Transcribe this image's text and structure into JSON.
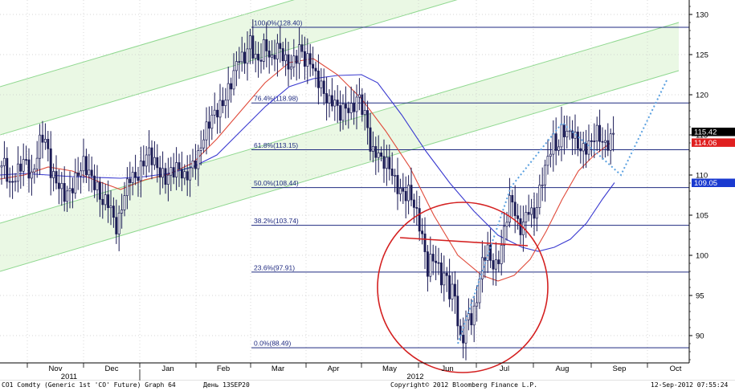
{
  "footer": {
    "ticker": "CO1 Comdty (Generic 1st 'CO' Future) Graph 64",
    "period": "День 13SEP20",
    "copyright": "Copyright© 2012 Bloomberg Finance L.P.",
    "timestamp": "12-Sep-2012 07:55:24"
  },
  "colors": {
    "candle": "#1a1a55",
    "fib_line": "#1f2a80",
    "ma_fast": "#e04a3a",
    "ma_slow": "#3a3ad0",
    "channel": "#90d890",
    "channel_fill": "#eaf8e4",
    "circle": "#d42020",
    "projection": "#5aa0e0",
    "grid": "#c8c8c8"
  },
  "chart_data": {
    "type": "candlestick",
    "ylim": [
      86,
      133
    ],
    "y_ticks": [
      90,
      95,
      100,
      105,
      110,
      115,
      120,
      125,
      130
    ],
    "x_axis": {
      "months": [
        "Nov",
        "Dec",
        "Jan",
        "Feb",
        "Mar",
        "Apr",
        "May",
        "Jun",
        "Jul",
        "Aug",
        "Sep",
        "Oct"
      ],
      "years": [
        {
          "label": "2011",
          "at": "Nov"
        },
        {
          "label": "2012",
          "at": "Jun"
        }
      ]
    },
    "fibonacci": [
      {
        "label": "100.0%(128.40)",
        "value": 128.4
      },
      {
        "label": "76.4%(118.98)",
        "value": 118.98
      },
      {
        "label": "61.8%(113.15)",
        "value": 113.15
      },
      {
        "label": "50.0%(108.44)",
        "value": 108.44
      },
      {
        "label": "38.2%(103.74)",
        "value": 103.74
      },
      {
        "label": "23.6%(97.91)",
        "value": 97.91
      },
      {
        "label": "0.0%(88.49)",
        "value": 88.49
      }
    ],
    "price_tags": [
      {
        "label": "115.42",
        "value": 115.4,
        "color": "#000000"
      },
      {
        "label": "114.06",
        "value": 114.06,
        "color": "#e02020"
      },
      {
        "label": "109.05",
        "value": 109.05,
        "color": "#1a3ad0"
      }
    ],
    "price_path": [
      [
        0,
        111
      ],
      [
        6,
        111.5
      ],
      [
        12,
        108.5
      ],
      [
        20,
        110
      ],
      [
        30,
        112
      ],
      [
        40,
        109.5
      ],
      [
        48,
        113.5
      ],
      [
        52,
        115
      ],
      [
        58,
        114
      ],
      [
        64,
        110
      ],
      [
        72,
        109
      ],
      [
        80,
        107.5
      ],
      [
        88,
        108
      ],
      [
        96,
        110
      ],
      [
        104,
        111.5
      ],
      [
        112,
        110
      ],
      [
        120,
        108.5
      ],
      [
        128,
        106.5
      ],
      [
        134,
        107
      ],
      [
        140,
        105
      ],
      [
        146,
        103
      ],
      [
        150,
        105.5
      ],
      [
        156,
        108
      ],
      [
        162,
        110
      ],
      [
        170,
        109.5
      ],
      [
        178,
        111.5
      ],
      [
        184,
        113
      ],
      [
        190,
        112
      ],
      [
        198,
        110.5
      ],
      [
        206,
        109.5
      ],
      [
        214,
        110.5
      ],
      [
        222,
        111
      ],
      [
        230,
        109.5
      ],
      [
        238,
        111
      ],
      [
        246,
        112
      ],
      [
        254,
        115
      ],
      [
        262,
        117
      ],
      [
        270,
        118
      ],
      [
        278,
        119
      ],
      [
        286,
        121
      ],
      [
        292,
        123
      ],
      [
        298,
        125
      ],
      [
        304,
        124
      ],
      [
        310,
        127
      ],
      [
        316,
        125
      ],
      [
        322,
        124
      ],
      [
        330,
        126.5
      ],
      [
        338,
        124
      ],
      [
        344,
        126
      ],
      [
        350,
        125.5
      ],
      [
        356,
        124
      ],
      [
        362,
        123.5
      ],
      [
        368,
        124.5
      ],
      [
        374,
        126
      ],
      [
        380,
        124
      ],
      [
        386,
        124.5
      ],
      [
        392,
        122.5
      ],
      [
        398,
        121.5
      ],
      [
        404,
        120
      ],
      [
        410,
        119
      ],
      [
        416,
        119.5
      ],
      [
        422,
        117.5
      ],
      [
        430,
        118.5
      ],
      [
        438,
        118
      ],
      [
        446,
        120
      ],
      [
        452,
        118
      ],
      [
        458,
        116
      ],
      [
        462,
        112.5
      ],
      [
        468,
        113
      ],
      [
        474,
        112
      ],
      [
        480,
        111.5
      ],
      [
        486,
        111
      ],
      [
        492,
        109
      ],
      [
        498,
        108
      ],
      [
        504,
        107.5
      ],
      [
        510,
        108
      ],
      [
        516,
        106
      ],
      [
        522,
        104
      ],
      [
        528,
        101
      ],
      [
        532,
        98
      ],
      [
        538,
        100
      ],
      [
        544,
        99
      ],
      [
        550,
        97
      ],
      [
        556,
        97.5
      ],
      [
        560,
        95
      ],
      [
        566,
        96
      ],
      [
        570,
        91
      ],
      [
        574,
        89
      ],
      [
        578,
        90.5
      ],
      [
        584,
        93
      ],
      [
        588,
        91.5
      ],
      [
        594,
        95
      ],
      [
        600,
        99
      ],
      [
        606,
        101
      ],
      [
        612,
        99
      ],
      [
        618,
        98.5
      ],
      [
        624,
        101
      ],
      [
        630,
        104.5
      ],
      [
        636,
        107.5
      ],
      [
        640,
        106
      ],
      [
        646,
        103
      ],
      [
        652,
        104
      ],
      [
        658,
        106
      ],
      [
        664,
        104.5
      ],
      [
        670,
        107
      ],
      [
        676,
        110
      ],
      [
        682,
        112
      ],
      [
        688,
        114.5
      ],
      [
        694,
        113
      ],
      [
        700,
        116
      ],
      [
        706,
        115
      ],
      [
        712,
        115.5
      ],
      [
        718,
        114
      ],
      [
        724,
        113
      ],
      [
        730,
        113.5
      ],
      [
        736,
        114
      ],
      [
        742,
        115.5
      ],
      [
        748,
        114.5
      ],
      [
        754,
        113.5
      ],
      [
        760,
        114.5
      ],
      [
        765,
        115.4
      ]
    ],
    "ma_fast": [
      [
        0,
        109.5
      ],
      [
        30,
        110
      ],
      [
        60,
        111
      ],
      [
        90,
        110.5
      ],
      [
        120,
        109.3
      ],
      [
        150,
        108.2
      ],
      [
        180,
        109.4
      ],
      [
        210,
        110.1
      ],
      [
        240,
        111.5
      ],
      [
        270,
        114.5
      ],
      [
        300,
        118
      ],
      [
        330,
        121.5
      ],
      [
        360,
        124
      ],
      [
        390,
        124.5
      ],
      [
        420,
        122.5
      ],
      [
        450,
        119.5
      ],
      [
        480,
        115.5
      ],
      [
        510,
        111
      ],
      [
        540,
        105
      ],
      [
        570,
        100
      ],
      [
        600,
        97.5
      ],
      [
        620,
        96.8
      ],
      [
        640,
        97.5
      ],
      [
        660,
        99.5
      ],
      [
        680,
        103
      ],
      [
        700,
        107
      ],
      [
        720,
        110.5
      ],
      [
        740,
        112.5
      ],
      [
        760,
        114
      ]
    ],
    "ma_slow": [
      [
        0,
        110
      ],
      [
        30,
        110.2
      ],
      [
        60,
        110
      ],
      [
        90,
        109.8
      ],
      [
        120,
        109.7
      ],
      [
        150,
        109.6
      ],
      [
        180,
        109.8
      ],
      [
        210,
        110.2
      ],
      [
        240,
        111
      ],
      [
        270,
        112.5
      ],
      [
        300,
        115.5
      ],
      [
        330,
        118.5
      ],
      [
        360,
        121
      ],
      [
        390,
        122
      ],
      [
        420,
        122.4
      ],
      [
        450,
        122.5
      ],
      [
        470,
        121.5
      ],
      [
        500,
        117.5
      ],
      [
        530,
        113
      ],
      [
        560,
        109
      ],
      [
        590,
        105.5
      ],
      [
        620,
        102.5
      ],
      [
        650,
        101
      ],
      [
        670,
        100.5
      ],
      [
        690,
        101
      ],
      [
        710,
        102
      ],
      [
        730,
        104
      ],
      [
        750,
        107
      ],
      [
        765,
        109.05
      ]
    ],
    "channel": {
      "upper": [
        [
          0,
          121
        ],
        [
          845,
          146
        ]
      ],
      "middle": [
        [
          0,
          115
        ],
        [
          845,
          140
        ]
      ],
      "lower": [
        [
          0,
          104
        ],
        [
          845,
          129
        ]
      ],
      "bottom": [
        [
          0,
          98
        ],
        [
          845,
          123
        ]
      ]
    },
    "neckline": [
      [
        498,
        102.2
      ],
      [
        657,
        101.2
      ]
    ],
    "projection": [
      [
        570,
        89
      ],
      [
        636,
        108.5
      ],
      [
        700,
        116.5
      ],
      [
        740,
        113
      ],
      [
        773,
        110
      ],
      [
        830,
        121.8
      ]
    ],
    "circle": {
      "cx": 576,
      "cy_value": 96,
      "radius_value": 10.6
    }
  }
}
